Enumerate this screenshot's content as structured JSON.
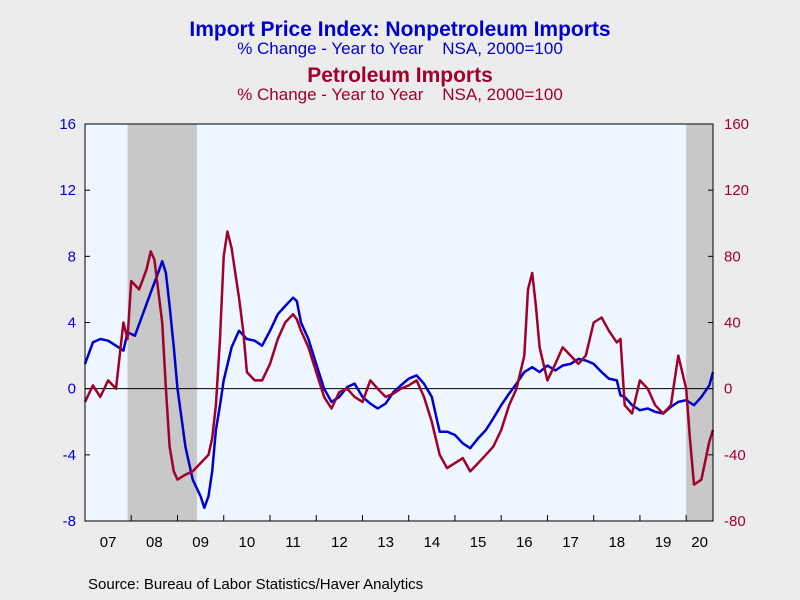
{
  "chart_data": {
    "type": "line",
    "title": "Import Price Index: Nonpetroleum Imports",
    "subtitle": "% Change - Year to Year    NSA, 2000=100",
    "title2": "Petroleum Imports",
    "subtitle2": "% Change - Year to Year    NSA, 2000=100",
    "source": "Source:  Bureau of Labor Statistics/Haver Analytics",
    "x_tick_labels": [
      "07",
      "08",
      "09",
      "10",
      "11",
      "12",
      "13",
      "14",
      "15",
      "16",
      "17",
      "18",
      "19",
      "20"
    ],
    "x_range": [
      2007.0,
      2020.58
    ],
    "left_axis": {
      "ylim": [
        -8,
        16
      ],
      "ticks": [
        "-8",
        "-4",
        "0",
        "4",
        "8",
        "12",
        "16"
      ],
      "color": "#0000cc"
    },
    "right_axis": {
      "ylim": [
        -80,
        160
      ],
      "ticks": [
        "-80",
        "-40",
        "0",
        "40",
        "80",
        "120",
        "160"
      ],
      "color": "#a0002a"
    },
    "recessions": [
      [
        2007.92,
        2009.42
      ],
      [
        2020.0,
        2020.58
      ]
    ],
    "series": [
      {
        "name": "Nonpetroleum Imports",
        "axis": "left",
        "color": "#0000cc",
        "points": [
          [
            2007.0,
            1.5
          ],
          [
            2007.17,
            2.8
          ],
          [
            2007.33,
            3.0
          ],
          [
            2007.5,
            2.9
          ],
          [
            2007.67,
            2.6
          ],
          [
            2007.83,
            2.3
          ],
          [
            2007.92,
            3.4
          ],
          [
            2008.08,
            3.2
          ],
          [
            2008.25,
            4.5
          ],
          [
            2008.42,
            5.8
          ],
          [
            2008.58,
            7.0
          ],
          [
            2008.67,
            7.7
          ],
          [
            2008.75,
            7.0
          ],
          [
            2008.83,
            5.0
          ],
          [
            2008.92,
            2.5
          ],
          [
            2009.0,
            0.0
          ],
          [
            2009.17,
            -3.5
          ],
          [
            2009.33,
            -5.5
          ],
          [
            2009.5,
            -6.5
          ],
          [
            2009.58,
            -7.2
          ],
          [
            2009.67,
            -6.5
          ],
          [
            2009.75,
            -5.0
          ],
          [
            2009.83,
            -2.5
          ],
          [
            2009.92,
            -1.0
          ],
          [
            2010.0,
            0.5
          ],
          [
            2010.17,
            2.5
          ],
          [
            2010.33,
            3.5
          ],
          [
            2010.5,
            3.0
          ],
          [
            2010.67,
            2.9
          ],
          [
            2010.83,
            2.6
          ],
          [
            2011.0,
            3.5
          ],
          [
            2011.17,
            4.5
          ],
          [
            2011.33,
            5.0
          ],
          [
            2011.5,
            5.5
          ],
          [
            2011.58,
            5.3
          ],
          [
            2011.67,
            4.0
          ],
          [
            2011.83,
            3.0
          ],
          [
            2012.0,
            1.5
          ],
          [
            2012.17,
            0.0
          ],
          [
            2012.33,
            -0.8
          ],
          [
            2012.5,
            -0.5
          ],
          [
            2012.67,
            0.1
          ],
          [
            2012.83,
            0.3
          ],
          [
            2013.0,
            -0.5
          ],
          [
            2013.17,
            -0.9
          ],
          [
            2013.33,
            -1.2
          ],
          [
            2013.5,
            -0.9
          ],
          [
            2013.67,
            -0.2
          ],
          [
            2013.83,
            0.2
          ],
          [
            2014.0,
            0.6
          ],
          [
            2014.17,
            0.8
          ],
          [
            2014.33,
            0.3
          ],
          [
            2014.5,
            -0.5
          ],
          [
            2014.58,
            -1.5
          ],
          [
            2014.67,
            -2.6
          ],
          [
            2014.83,
            -2.6
          ],
          [
            2015.0,
            -2.8
          ],
          [
            2015.17,
            -3.3
          ],
          [
            2015.33,
            -3.6
          ],
          [
            2015.5,
            -3.0
          ],
          [
            2015.67,
            -2.5
          ],
          [
            2015.83,
            -1.8
          ],
          [
            2016.0,
            -1.0
          ],
          [
            2016.17,
            -0.3
          ],
          [
            2016.33,
            0.3
          ],
          [
            2016.5,
            1.0
          ],
          [
            2016.67,
            1.3
          ],
          [
            2016.83,
            1.0
          ],
          [
            2017.0,
            1.4
          ],
          [
            2017.17,
            1.1
          ],
          [
            2017.33,
            1.4
          ],
          [
            2017.5,
            1.5
          ],
          [
            2017.67,
            1.8
          ],
          [
            2017.83,
            1.7
          ],
          [
            2018.0,
            1.5
          ],
          [
            2018.17,
            1.0
          ],
          [
            2018.33,
            0.6
          ],
          [
            2018.5,
            0.5
          ],
          [
            2018.58,
            -0.4
          ],
          [
            2018.67,
            -0.5
          ],
          [
            2018.83,
            -1.0
          ],
          [
            2019.0,
            -1.3
          ],
          [
            2019.17,
            -1.2
          ],
          [
            2019.33,
            -1.4
          ],
          [
            2019.5,
            -1.5
          ],
          [
            2019.67,
            -1.1
          ],
          [
            2019.83,
            -0.8
          ],
          [
            2020.0,
            -0.7
          ],
          [
            2020.17,
            -1.0
          ],
          [
            2020.33,
            -0.5
          ],
          [
            2020.5,
            0.2
          ],
          [
            2020.58,
            1.0
          ]
        ]
      },
      {
        "name": "Petroleum Imports",
        "axis": "right",
        "color": "#a0002a",
        "points": [
          [
            2007.0,
            -8
          ],
          [
            2007.17,
            2
          ],
          [
            2007.33,
            -5
          ],
          [
            2007.5,
            5
          ],
          [
            2007.67,
            0
          ],
          [
            2007.83,
            40
          ],
          [
            2007.92,
            30
          ],
          [
            2008.0,
            65
          ],
          [
            2008.17,
            60
          ],
          [
            2008.33,
            72
          ],
          [
            2008.42,
            83
          ],
          [
            2008.5,
            78
          ],
          [
            2008.58,
            60
          ],
          [
            2008.67,
            40
          ],
          [
            2008.75,
            0
          ],
          [
            2008.83,
            -35
          ],
          [
            2008.92,
            -50
          ],
          [
            2009.0,
            -55
          ],
          [
            2009.17,
            -52
          ],
          [
            2009.33,
            -50
          ],
          [
            2009.5,
            -45
          ],
          [
            2009.67,
            -40
          ],
          [
            2009.75,
            -30
          ],
          [
            2009.83,
            -10
          ],
          [
            2009.92,
            30
          ],
          [
            2010.0,
            80
          ],
          [
            2010.08,
            95
          ],
          [
            2010.17,
            85
          ],
          [
            2010.25,
            70
          ],
          [
            2010.33,
            55
          ],
          [
            2010.42,
            35
          ],
          [
            2010.5,
            10
          ],
          [
            2010.67,
            5
          ],
          [
            2010.83,
            5
          ],
          [
            2011.0,
            15
          ],
          [
            2011.17,
            30
          ],
          [
            2011.33,
            40
          ],
          [
            2011.5,
            45
          ],
          [
            2011.58,
            42
          ],
          [
            2011.67,
            35
          ],
          [
            2011.83,
            25
          ],
          [
            2012.0,
            10
          ],
          [
            2012.17,
            -5
          ],
          [
            2012.33,
            -12
          ],
          [
            2012.5,
            -2
          ],
          [
            2012.67,
            0
          ],
          [
            2012.83,
            -5
          ],
          [
            2013.0,
            -8
          ],
          [
            2013.17,
            5
          ],
          [
            2013.33,
            0
          ],
          [
            2013.5,
            -5
          ],
          [
            2013.67,
            -3
          ],
          [
            2013.83,
            0
          ],
          [
            2014.0,
            2
          ],
          [
            2014.17,
            5
          ],
          [
            2014.33,
            -5
          ],
          [
            2014.5,
            -20
          ],
          [
            2014.67,
            -40
          ],
          [
            2014.83,
            -48
          ],
          [
            2015.0,
            -45
          ],
          [
            2015.17,
            -42
          ],
          [
            2015.33,
            -50
          ],
          [
            2015.5,
            -45
          ],
          [
            2015.67,
            -40
          ],
          [
            2015.83,
            -35
          ],
          [
            2016.0,
            -25
          ],
          [
            2016.17,
            -10
          ],
          [
            2016.33,
            0
          ],
          [
            2016.5,
            20
          ],
          [
            2016.58,
            60
          ],
          [
            2016.67,
            70
          ],
          [
            2016.75,
            50
          ],
          [
            2016.83,
            25
          ],
          [
            2017.0,
            5
          ],
          [
            2017.17,
            15
          ],
          [
            2017.33,
            25
          ],
          [
            2017.5,
            20
          ],
          [
            2017.67,
            15
          ],
          [
            2017.83,
            20
          ],
          [
            2018.0,
            40
          ],
          [
            2018.17,
            43
          ],
          [
            2018.33,
            35
          ],
          [
            2018.5,
            28
          ],
          [
            2018.58,
            30
          ],
          [
            2018.67,
            -10
          ],
          [
            2018.83,
            -15
          ],
          [
            2019.0,
            5
          ],
          [
            2019.17,
            0
          ],
          [
            2019.33,
            -10
          ],
          [
            2019.5,
            -15
          ],
          [
            2019.67,
            -10
          ],
          [
            2019.83,
            20
          ],
          [
            2020.0,
            0
          ],
          [
            2020.08,
            -30
          ],
          [
            2020.17,
            -58
          ],
          [
            2020.33,
            -55
          ],
          [
            2020.5,
            -32
          ],
          [
            2020.58,
            -25
          ]
        ]
      }
    ]
  }
}
